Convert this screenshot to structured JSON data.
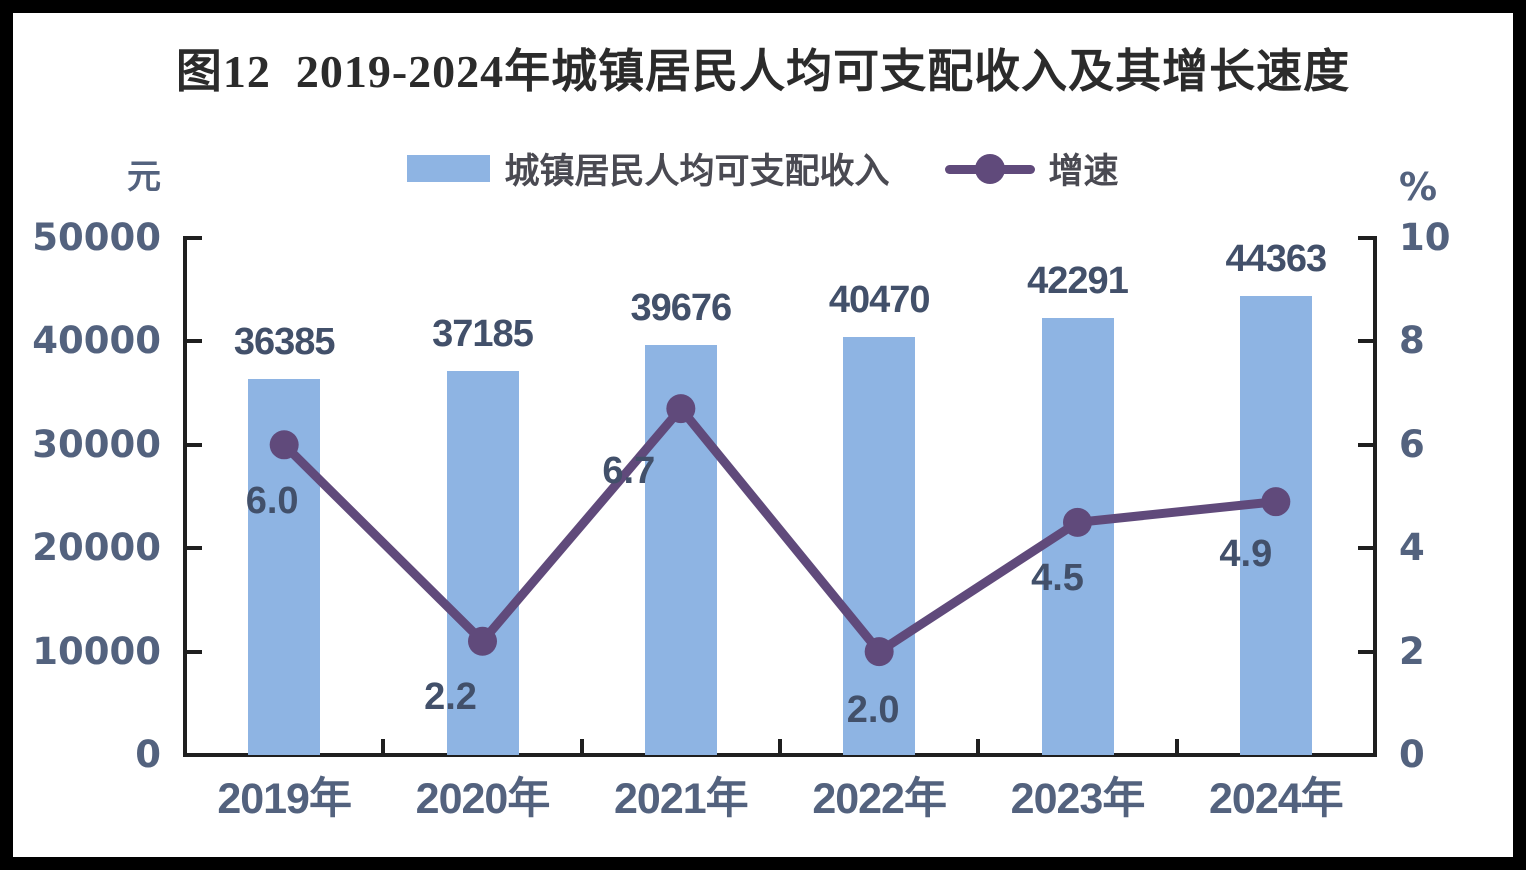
{
  "chart_data": {
    "type": "bar",
    "title": "图12  2019-2024年城镇居民人均可支配收入及其增长速度",
    "categories": [
      "2019年",
      "2020年",
      "2021年",
      "2022年",
      "2023年",
      "2024年"
    ],
    "series": [
      {
        "name": "城镇居民人均可支配收入",
        "render": "bar",
        "axis": "left",
        "values": [
          36385,
          37185,
          39676,
          40470,
          42291,
          44363
        ],
        "labels": [
          "36385",
          "37185",
          "39676",
          "40470",
          "42291",
          "44363"
        ],
        "color": "#8EB4E3"
      },
      {
        "name": "增速",
        "render": "line",
        "axis": "right",
        "values": [
          6.0,
          2.2,
          6.7,
          2.0,
          4.5,
          4.9
        ],
        "labels": [
          "6.0",
          "2.2",
          "6.7",
          "2.0",
          "4.5",
          "4.9"
        ],
        "color": "#604A7B"
      }
    ],
    "left_axis": {
      "unit": "元",
      "min": 0,
      "max": 50000,
      "tick_labels": [
        "50000",
        "40000",
        "30000",
        "20000",
        "10000",
        "0"
      ]
    },
    "right_axis": {
      "unit": "%",
      "min": 0,
      "max": 10,
      "tick_labels": [
        "10",
        "8",
        "6",
        "4",
        "2",
        "0"
      ]
    },
    "grid": false,
    "legend_position": "top-center"
  },
  "colors": {
    "bar": "#8EB4E3",
    "line": "#604A7B",
    "axis_line": "#1F1F1F",
    "axis_text": "#53627E",
    "data_label_text": "#42506A",
    "title_text": "#2B2B2B",
    "legend_text": "#4A4A52",
    "background": "#FFFFFF",
    "frame": "#000000"
  }
}
